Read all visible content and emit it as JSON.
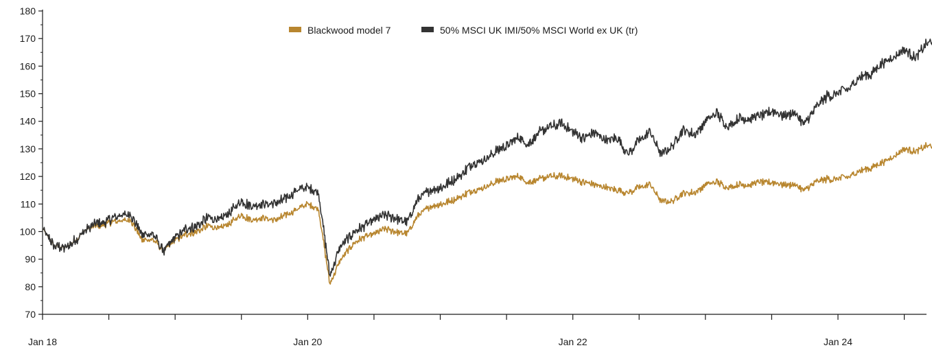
{
  "chart_data": {
    "type": "line",
    "title": "",
    "xlabel": "",
    "ylabel": "",
    "ylim": [
      70,
      180
    ],
    "yticks": [
      70,
      80,
      90,
      100,
      110,
      120,
      130,
      140,
      150,
      160,
      170,
      180
    ],
    "x_range": [
      "2018-01",
      "2024-10"
    ],
    "xtick_labels": [
      {
        "label": "Jan 18",
        "date": "2018-01"
      },
      {
        "label": "Jan 20",
        "date": "2020-01"
      },
      {
        "label": "Jan 22",
        "date": "2022-01"
      },
      {
        "label": "Jan 24",
        "date": "2024-01"
      }
    ],
    "grid": false,
    "legend_position": "top",
    "series": [
      {
        "name": "Blackwood model 7",
        "color": "#b8862f",
        "points": [
          [
            "2018-01",
            101
          ],
          [
            "2018-02",
            95
          ],
          [
            "2018-03",
            94
          ],
          [
            "2018-04",
            97
          ],
          [
            "2018-05",
            101
          ],
          [
            "2018-06",
            102
          ],
          [
            "2018-07",
            103
          ],
          [
            "2018-08",
            104
          ],
          [
            "2018-09",
            104
          ],
          [
            "2018-10",
            97
          ],
          [
            "2018-11",
            97
          ],
          [
            "2018-12",
            93
          ],
          [
            "2019-01",
            97
          ],
          [
            "2019-02",
            99
          ],
          [
            "2019-03",
            100
          ],
          [
            "2019-04",
            102
          ],
          [
            "2019-05",
            101
          ],
          [
            "2019-06",
            103
          ],
          [
            "2019-07",
            106
          ],
          [
            "2019-08",
            104
          ],
          [
            "2019-09",
            105
          ],
          [
            "2019-10",
            104
          ],
          [
            "2019-11",
            106
          ],
          [
            "2019-12",
            108
          ],
          [
            "2020-01",
            110
          ],
          [
            "2020-02",
            108
          ],
          [
            "2020-03",
            81
          ],
          [
            "2020-04",
            90
          ],
          [
            "2020-05",
            95
          ],
          [
            "2020-06",
            98
          ],
          [
            "2020-07",
            99
          ],
          [
            "2020-08",
            101
          ],
          [
            "2020-09",
            100
          ],
          [
            "2020-10",
            99
          ],
          [
            "2020-11",
            106
          ],
          [
            "2020-12",
            109
          ],
          [
            "2021-01",
            110
          ],
          [
            "2021-02",
            111
          ],
          [
            "2021-03",
            113
          ],
          [
            "2021-04",
            115
          ],
          [
            "2021-05",
            116
          ],
          [
            "2021-06",
            118
          ],
          [
            "2021-07",
            119
          ],
          [
            "2021-08",
            120
          ],
          [
            "2021-09",
            118
          ],
          [
            "2021-10",
            119
          ],
          [
            "2021-11",
            120
          ],
          [
            "2021-12",
            120
          ],
          [
            "2022-01",
            119
          ],
          [
            "2022-02",
            118
          ],
          [
            "2022-03",
            117
          ],
          [
            "2022-04",
            116
          ],
          [
            "2022-05",
            115
          ],
          [
            "2022-06",
            114
          ],
          [
            "2022-07",
            116
          ],
          [
            "2022-08",
            117
          ],
          [
            "2022-09",
            111
          ],
          [
            "2022-10",
            111
          ],
          [
            "2022-11",
            114
          ],
          [
            "2022-12",
            114
          ],
          [
            "2023-01",
            117
          ],
          [
            "2023-02",
            118
          ],
          [
            "2023-03",
            116
          ],
          [
            "2023-04",
            117
          ],
          [
            "2023-05",
            117
          ],
          [
            "2023-06",
            118
          ],
          [
            "2023-07",
            118
          ],
          [
            "2023-08",
            117
          ],
          [
            "2023-09",
            117
          ],
          [
            "2023-10",
            115
          ],
          [
            "2023-11",
            118
          ],
          [
            "2023-12",
            119
          ],
          [
            "2024-01",
            119
          ],
          [
            "2024-02",
            120
          ],
          [
            "2024-03",
            122
          ],
          [
            "2024-04",
            123
          ],
          [
            "2024-05",
            125
          ],
          [
            "2024-06",
            127
          ],
          [
            "2024-07",
            130
          ],
          [
            "2024-08",
            129
          ],
          [
            "2024-09",
            131
          ],
          [
            "2024-10",
            131
          ]
        ]
      },
      {
        "name": "50% MSCI UK IMI/50% MSCI World ex UK (tr)",
        "color": "#333333",
        "points": [
          [
            "2018-01",
            101
          ],
          [
            "2018-02",
            95
          ],
          [
            "2018-03",
            94
          ],
          [
            "2018-04",
            97
          ],
          [
            "2018-05",
            101
          ],
          [
            "2018-06",
            103
          ],
          [
            "2018-07",
            104
          ],
          [
            "2018-08",
            106
          ],
          [
            "2018-09",
            106
          ],
          [
            "2018-10",
            99
          ],
          [
            "2018-11",
            99
          ],
          [
            "2018-12",
            93
          ],
          [
            "2019-01",
            98
          ],
          [
            "2019-02",
            101
          ],
          [
            "2019-03",
            102
          ],
          [
            "2019-04",
            105
          ],
          [
            "2019-05",
            104
          ],
          [
            "2019-06",
            107
          ],
          [
            "2019-07",
            111
          ],
          [
            "2019-08",
            109
          ],
          [
            "2019-09",
            110
          ],
          [
            "2019-10",
            110
          ],
          [
            "2019-11",
            112
          ],
          [
            "2019-12",
            115
          ],
          [
            "2020-01",
            116
          ],
          [
            "2020-02",
            114
          ],
          [
            "2020-03",
            84
          ],
          [
            "2020-04",
            95
          ],
          [
            "2020-05",
            99
          ],
          [
            "2020-06",
            102
          ],
          [
            "2020-07",
            104
          ],
          [
            "2020-08",
            106
          ],
          [
            "2020-09",
            105
          ],
          [
            "2020-10",
            103
          ],
          [
            "2020-11",
            112
          ],
          [
            "2020-12",
            115
          ],
          [
            "2021-01",
            116
          ],
          [
            "2021-02",
            118
          ],
          [
            "2021-03",
            121
          ],
          [
            "2021-04",
            125
          ],
          [
            "2021-05",
            126
          ],
          [
            "2021-06",
            129
          ],
          [
            "2021-07",
            131
          ],
          [
            "2021-08",
            134
          ],
          [
            "2021-09",
            132
          ],
          [
            "2021-10",
            136
          ],
          [
            "2021-11",
            138
          ],
          [
            "2021-12",
            139
          ],
          [
            "2022-01",
            136
          ],
          [
            "2022-02",
            134
          ],
          [
            "2022-03",
            136
          ],
          [
            "2022-04",
            133
          ],
          [
            "2022-05",
            134
          ],
          [
            "2022-06",
            128
          ],
          [
            "2022-07",
            133
          ],
          [
            "2022-08",
            136
          ],
          [
            "2022-09",
            128
          ],
          [
            "2022-10",
            131
          ],
          [
            "2022-11",
            137
          ],
          [
            "2022-12",
            135
          ],
          [
            "2023-01",
            140
          ],
          [
            "2023-02",
            143
          ],
          [
            "2023-03",
            138
          ],
          [
            "2023-04",
            141
          ],
          [
            "2023-05",
            141
          ],
          [
            "2023-06",
            142
          ],
          [
            "2023-07",
            144
          ],
          [
            "2023-08",
            142
          ],
          [
            "2023-09",
            143
          ],
          [
            "2023-10",
            139
          ],
          [
            "2023-11",
            145
          ],
          [
            "2023-12",
            149
          ],
          [
            "2024-01",
            150
          ],
          [
            "2024-02",
            152
          ],
          [
            "2024-03",
            156
          ],
          [
            "2024-04",
            157
          ],
          [
            "2024-05",
            161
          ],
          [
            "2024-06",
            163
          ],
          [
            "2024-07",
            166
          ],
          [
            "2024-08",
            163
          ],
          [
            "2024-09",
            168
          ],
          [
            "2024-10",
            170
          ]
        ]
      }
    ]
  }
}
